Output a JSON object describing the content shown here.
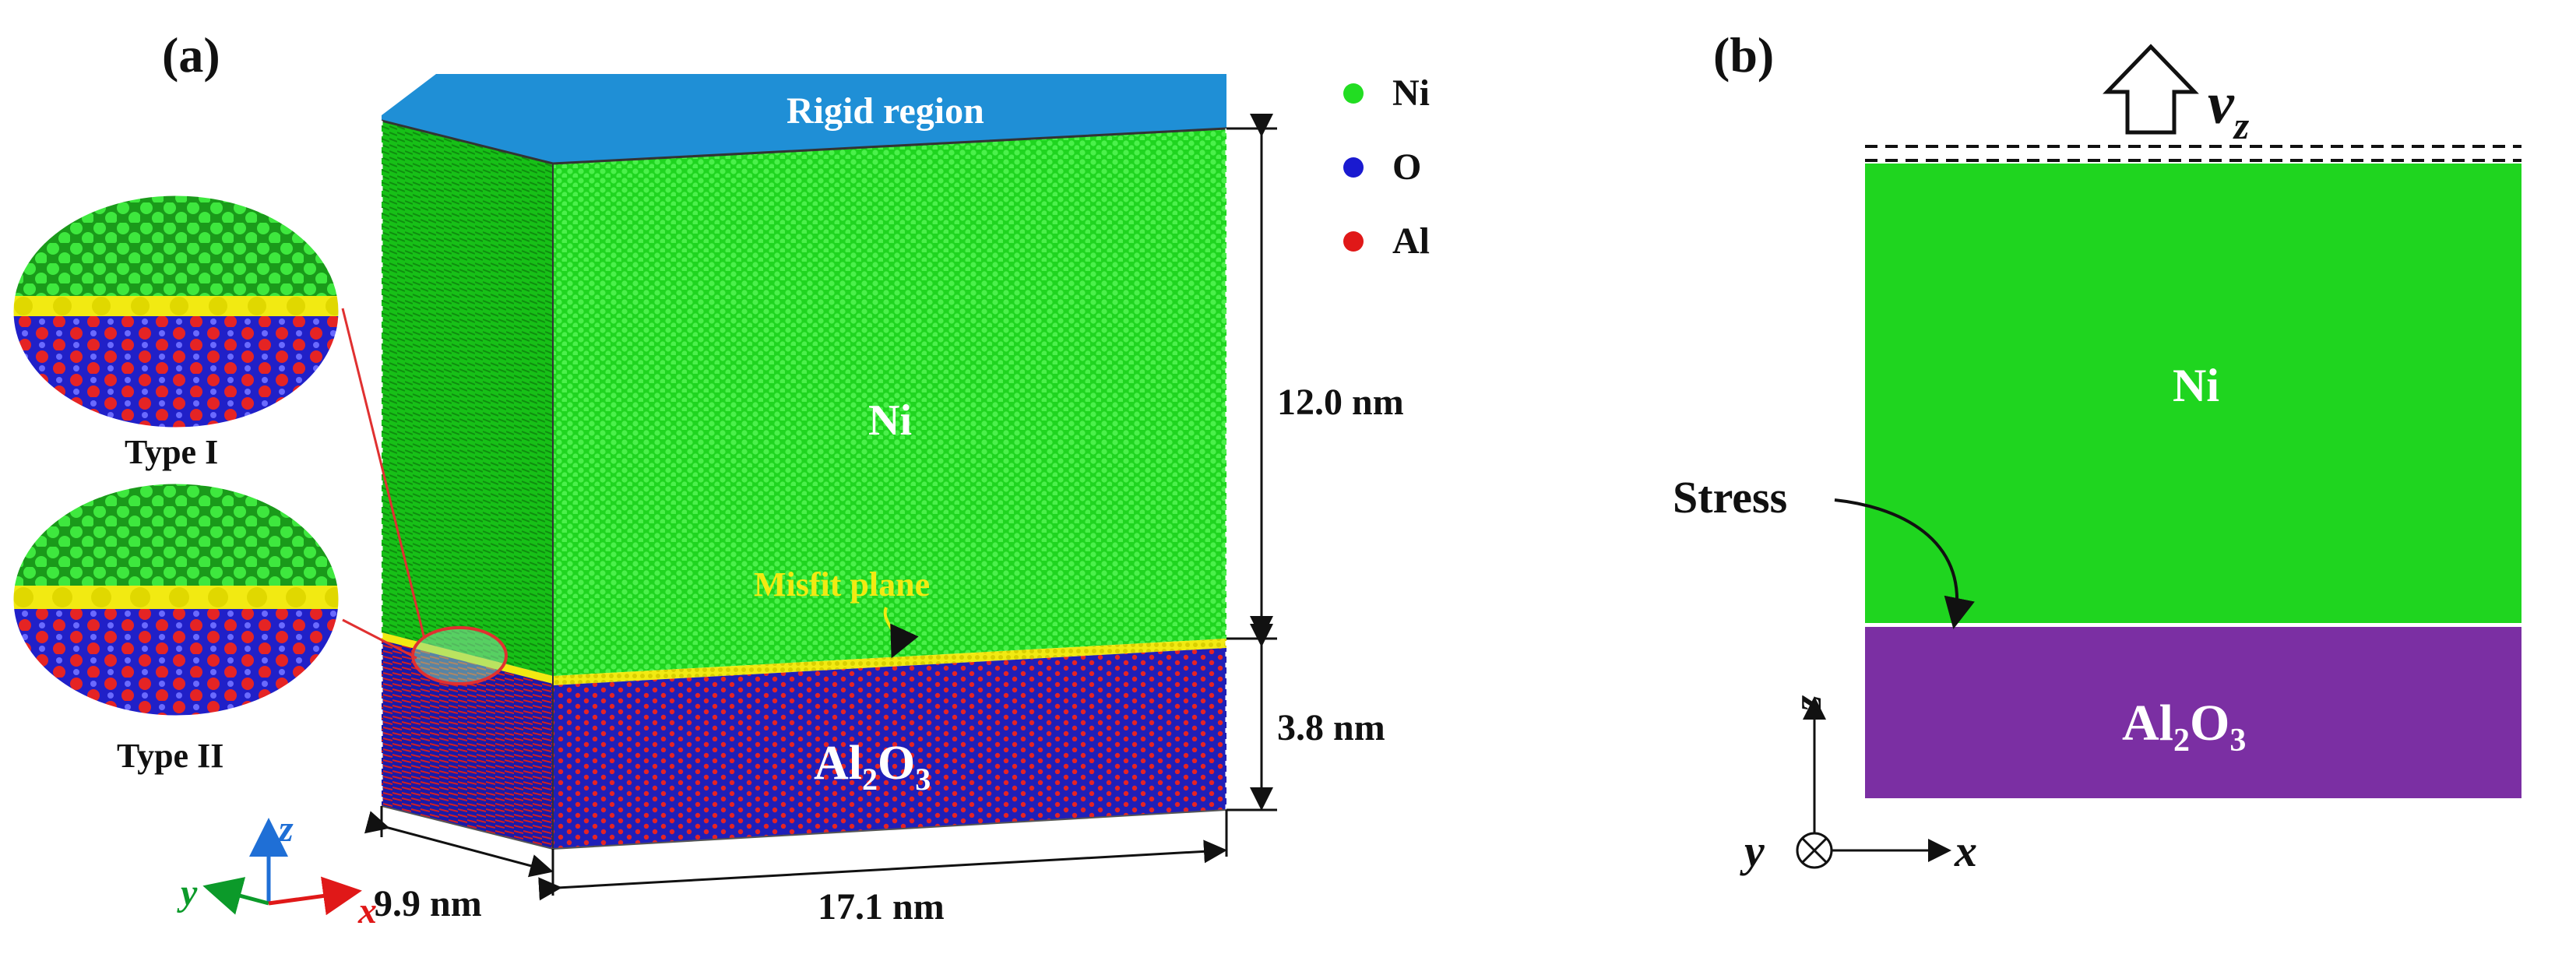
{
  "panel_a": {
    "label": "(a)",
    "rigid_region": "Rigid region",
    "ni_label": "Ni",
    "al2o3": {
      "base": "Al",
      "sub1": "2",
      "mid": "O",
      "sub2": "3"
    },
    "misfit_plane": "Misfit plane",
    "dims": {
      "ni_height": "12.0 nm",
      "al2o3_height": "3.8 nm",
      "depth": "9.9 nm",
      "width": "17.1 nm"
    },
    "legend": [
      {
        "label": "Ni",
        "color": "#22dd22"
      },
      {
        "label": "O",
        "color": "#1a1ad0"
      },
      {
        "label": "Al",
        "color": "#e01818"
      }
    ],
    "insets": [
      {
        "label": "Type I"
      },
      {
        "label": "Type II"
      }
    ],
    "axes": {
      "z": "z",
      "y": "y",
      "x": "x"
    }
  },
  "panel_b": {
    "label": "(b)",
    "velocity": {
      "base": "v",
      "sub": "z"
    },
    "ni_label": "Ni",
    "al2o3": {
      "base": "Al",
      "sub1": "2",
      "mid": "O",
      "sub2": "3"
    },
    "stress": "Stress",
    "axes": {
      "z": "z",
      "y": "y",
      "x": "x"
    }
  },
  "colors": {
    "ni": "#1fd51f",
    "ni_dark": "#16b316",
    "al2o3_b": "#7b2fa3",
    "oxide_blue": "#1f1fb8",
    "rigid": "#1f8fd6",
    "misfit": "#f2ea12"
  }
}
